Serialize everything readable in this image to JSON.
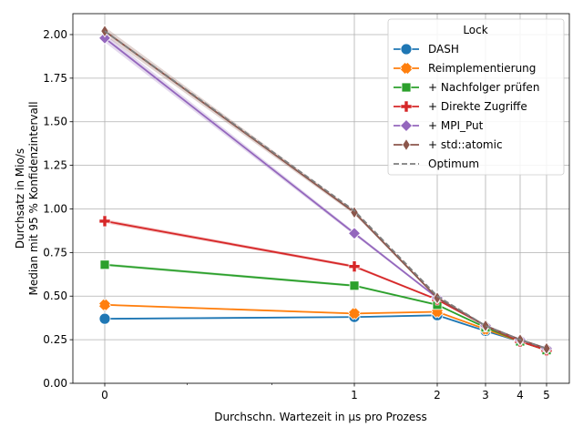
{
  "chart_data": {
    "type": "line",
    "xlabel": "Durchschn. Wartezeit in µs pro Prozess",
    "ylabel_line1": "Durchsatz in Mio/s",
    "ylabel_line2": "Median mit 95 % Konfidenzintervall",
    "x_scale": "symlog",
    "x_ticks": [
      0,
      1,
      2,
      3,
      4,
      5
    ],
    "x_minor_ticks": [
      0.33,
      0.67
    ],
    "ylim": [
      0,
      2.12
    ],
    "y_ticks": [
      "0.00",
      "0.25",
      "0.50",
      "0.75",
      "1.00",
      "1.25",
      "1.50",
      "1.75",
      "2.00"
    ],
    "grid": true,
    "legend": {
      "title": "Lock",
      "placement": "top-right"
    },
    "x": [
      0,
      1,
      2,
      3,
      4,
      5
    ],
    "series": [
      {
        "name": "DASH",
        "color": "#1f77b4",
        "marker": "circle",
        "values": [
          0.37,
          0.38,
          0.39,
          0.3,
          0.24,
          0.19
        ]
      },
      {
        "name": "Reimplementierung",
        "color": "#ff7f0e",
        "marker": "x",
        "values": [
          0.45,
          0.4,
          0.41,
          0.31,
          0.24,
          0.19
        ]
      },
      {
        "name": "+ Nachfolger prüfen",
        "color": "#2ca02c",
        "marker": "square",
        "values": [
          0.68,
          0.56,
          0.45,
          0.32,
          0.24,
          0.19
        ]
      },
      {
        "name": "+ Direkte Zugriffe",
        "color": "#d62728",
        "marker": "plus",
        "values": [
          0.93,
          0.67,
          0.48,
          0.33,
          0.24,
          0.19
        ]
      },
      {
        "name": "+ MPI_Put",
        "color": "#9467bd",
        "marker": "diamond",
        "values": [
          1.98,
          0.86,
          0.49,
          0.33,
          0.25,
          0.2
        ]
      },
      {
        "name": "+ std::atomic",
        "color": "#8c564b",
        "marker": "thin_diamond",
        "values": [
          2.02,
          0.98,
          0.49,
          0.33,
          0.25,
          0.2
        ]
      }
    ],
    "optimum": {
      "name": "Optimum",
      "color": "#7f7f7f",
      "style": "dashed",
      "values": [
        2.02,
        0.99,
        0.5,
        0.33,
        0.25,
        0.2
      ]
    }
  }
}
